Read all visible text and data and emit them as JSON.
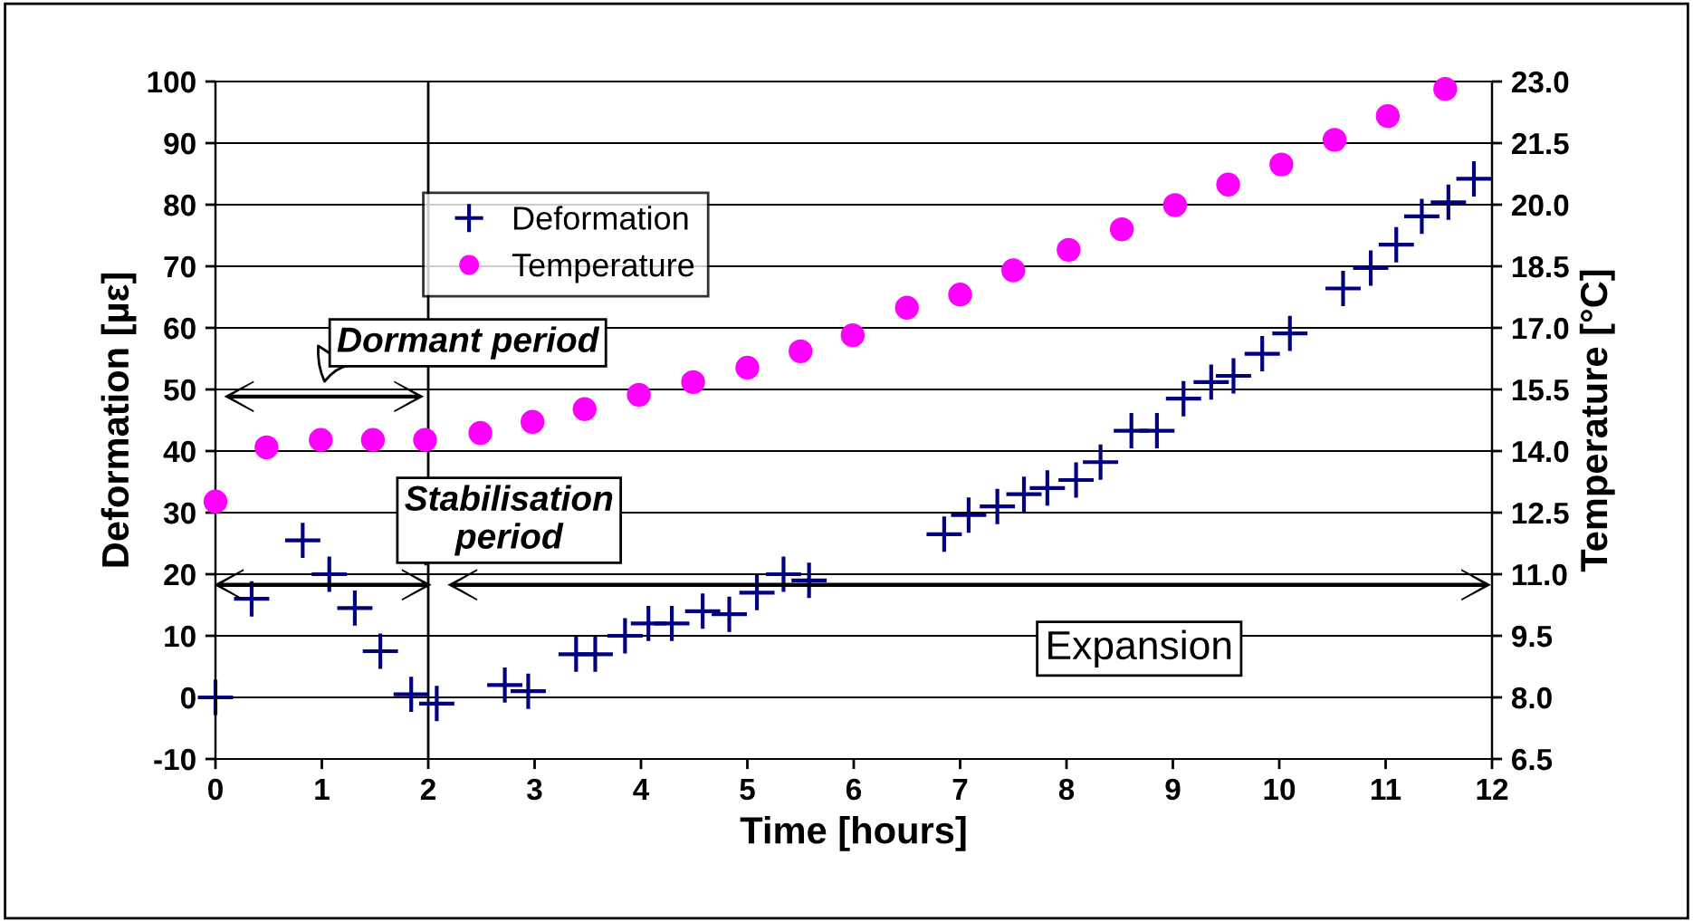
{
  "chart_data": {
    "type": "scatter",
    "xlabel": "Time [hours]",
    "ylabel": "Deformation [µε]",
    "y2label": "Temperature [°C]",
    "xlim": [
      0,
      12
    ],
    "xticks": [
      0,
      1,
      2,
      3,
      4,
      5,
      6,
      7,
      8,
      9,
      10,
      11,
      12
    ],
    "ylim": [
      -10,
      100
    ],
    "yticks": [
      -10,
      0,
      10,
      20,
      30,
      40,
      50,
      60,
      70,
      80,
      90,
      100
    ],
    "y2lim": [
      6.5,
      23.0
    ],
    "y2ticks": [
      {
        "value": 6.5,
        "label": "6.5"
      },
      {
        "value": 8,
        "label": "8.0"
      },
      {
        "value": 9.5,
        "label": "9.5"
      },
      {
        "value": 11,
        "label": "11.0"
      },
      {
        "value": 12.5,
        "label": "12.5"
      },
      {
        "value": 14,
        "label": "14.0"
      },
      {
        "value": 15.5,
        "label": "15.5"
      },
      {
        "value": 17,
        "label": "17.0"
      },
      {
        "value": 18.5,
        "label": "18.5"
      },
      {
        "value": 20,
        "label": "20.0"
      },
      {
        "value": 21.5,
        "label": "21.5"
      },
      {
        "value": 23,
        "label": "23.0"
      }
    ],
    "grid": "y",
    "legend": "top left",
    "series": [
      {
        "name": "Deformation",
        "color": "#000080",
        "marker": "cross",
        "x": [
          0,
          0.34,
          0.82,
          1.07,
          1.31,
          1.55,
          1.84,
          2.08,
          2.72,
          2.94,
          3.39,
          3.57,
          3.85,
          4.07,
          4.29,
          4.58,
          4.83,
          5.09,
          5.34,
          5.58,
          6.85,
          7.08,
          7.35,
          7.6,
          7.82,
          8.09,
          8.32,
          8.61,
          8.85,
          9.1,
          9.36,
          9.57,
          9.84,
          10.1,
          10.6,
          10.86,
          11.1,
          11.34,
          11.59,
          11.83
        ],
        "values": [
          0,
          16,
          25.5,
          20,
          14.5,
          7.5,
          0.5,
          -1,
          2,
          1,
          7,
          7,
          10,
          12,
          12,
          14,
          13.5,
          17,
          20,
          19,
          26.5,
          29.6,
          31,
          33,
          34,
          35.3,
          38.2,
          43.3,
          43.3,
          48.5,
          51.2,
          52.2,
          55.8,
          59.1,
          66.4,
          69.7,
          73.5,
          78.1,
          80.4,
          84.2
        ]
      },
      {
        "name": "Temperature",
        "color": "#ff00ff",
        "marker": "circle",
        "axis": "y2",
        "x": [
          0,
          0.48,
          0.99,
          1.48,
          1.97,
          2.49,
          2.98,
          3.47,
          3.98,
          4.49,
          5.0,
          5.5,
          5.99,
          6.5,
          7.0,
          7.5,
          8.02,
          8.52,
          9.02,
          9.52,
          10.02,
          10.52,
          11.02,
          11.56
        ],
        "values": [
          12.77,
          14.09,
          14.27,
          14.27,
          14.27,
          14.44,
          14.71,
          15.02,
          15.37,
          15.68,
          16.03,
          16.43,
          16.82,
          17.49,
          17.81,
          18.4,
          18.9,
          19.4,
          19.99,
          20.49,
          20.98,
          21.58,
          22.16,
          22.82
        ]
      }
    ],
    "ref_lines": [
      {
        "axis": "x",
        "value": 2.0,
        "color": "#000000"
      }
    ],
    "annotations": [
      "Dormant period",
      "Stabilisation\nperiod",
      "Expansion"
    ]
  }
}
